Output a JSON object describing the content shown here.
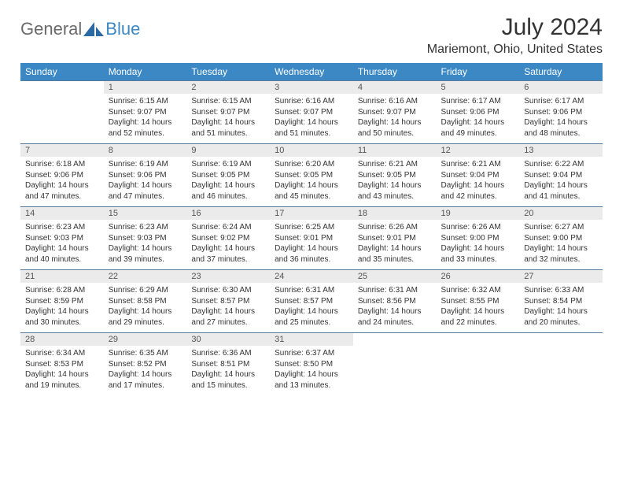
{
  "header": {
    "logo_general": "General",
    "logo_blue": "Blue",
    "month_title": "July 2024",
    "location": "Mariemont, Ohio, United States"
  },
  "colors": {
    "header_bg": "#3b88c4",
    "daynum_bg": "#ebebeb",
    "border": "#5a7a9a"
  },
  "day_names": [
    "Sunday",
    "Monday",
    "Tuesday",
    "Wednesday",
    "Thursday",
    "Friday",
    "Saturday"
  ],
  "weeks": [
    [
      {
        "n": "",
        "sr": "",
        "ss": "",
        "dl": ""
      },
      {
        "n": "1",
        "sr": "Sunrise: 6:15 AM",
        "ss": "Sunset: 9:07 PM",
        "dl": "Daylight: 14 hours and 52 minutes."
      },
      {
        "n": "2",
        "sr": "Sunrise: 6:15 AM",
        "ss": "Sunset: 9:07 PM",
        "dl": "Daylight: 14 hours and 51 minutes."
      },
      {
        "n": "3",
        "sr": "Sunrise: 6:16 AM",
        "ss": "Sunset: 9:07 PM",
        "dl": "Daylight: 14 hours and 51 minutes."
      },
      {
        "n": "4",
        "sr": "Sunrise: 6:16 AM",
        "ss": "Sunset: 9:07 PM",
        "dl": "Daylight: 14 hours and 50 minutes."
      },
      {
        "n": "5",
        "sr": "Sunrise: 6:17 AM",
        "ss": "Sunset: 9:06 PM",
        "dl": "Daylight: 14 hours and 49 minutes."
      },
      {
        "n": "6",
        "sr": "Sunrise: 6:17 AM",
        "ss": "Sunset: 9:06 PM",
        "dl": "Daylight: 14 hours and 48 minutes."
      }
    ],
    [
      {
        "n": "7",
        "sr": "Sunrise: 6:18 AM",
        "ss": "Sunset: 9:06 PM",
        "dl": "Daylight: 14 hours and 47 minutes."
      },
      {
        "n": "8",
        "sr": "Sunrise: 6:19 AM",
        "ss": "Sunset: 9:06 PM",
        "dl": "Daylight: 14 hours and 47 minutes."
      },
      {
        "n": "9",
        "sr": "Sunrise: 6:19 AM",
        "ss": "Sunset: 9:05 PM",
        "dl": "Daylight: 14 hours and 46 minutes."
      },
      {
        "n": "10",
        "sr": "Sunrise: 6:20 AM",
        "ss": "Sunset: 9:05 PM",
        "dl": "Daylight: 14 hours and 45 minutes."
      },
      {
        "n": "11",
        "sr": "Sunrise: 6:21 AM",
        "ss": "Sunset: 9:05 PM",
        "dl": "Daylight: 14 hours and 43 minutes."
      },
      {
        "n": "12",
        "sr": "Sunrise: 6:21 AM",
        "ss": "Sunset: 9:04 PM",
        "dl": "Daylight: 14 hours and 42 minutes."
      },
      {
        "n": "13",
        "sr": "Sunrise: 6:22 AM",
        "ss": "Sunset: 9:04 PM",
        "dl": "Daylight: 14 hours and 41 minutes."
      }
    ],
    [
      {
        "n": "14",
        "sr": "Sunrise: 6:23 AM",
        "ss": "Sunset: 9:03 PM",
        "dl": "Daylight: 14 hours and 40 minutes."
      },
      {
        "n": "15",
        "sr": "Sunrise: 6:23 AM",
        "ss": "Sunset: 9:03 PM",
        "dl": "Daylight: 14 hours and 39 minutes."
      },
      {
        "n": "16",
        "sr": "Sunrise: 6:24 AM",
        "ss": "Sunset: 9:02 PM",
        "dl": "Daylight: 14 hours and 37 minutes."
      },
      {
        "n": "17",
        "sr": "Sunrise: 6:25 AM",
        "ss": "Sunset: 9:01 PM",
        "dl": "Daylight: 14 hours and 36 minutes."
      },
      {
        "n": "18",
        "sr": "Sunrise: 6:26 AM",
        "ss": "Sunset: 9:01 PM",
        "dl": "Daylight: 14 hours and 35 minutes."
      },
      {
        "n": "19",
        "sr": "Sunrise: 6:26 AM",
        "ss": "Sunset: 9:00 PM",
        "dl": "Daylight: 14 hours and 33 minutes."
      },
      {
        "n": "20",
        "sr": "Sunrise: 6:27 AM",
        "ss": "Sunset: 9:00 PM",
        "dl": "Daylight: 14 hours and 32 minutes."
      }
    ],
    [
      {
        "n": "21",
        "sr": "Sunrise: 6:28 AM",
        "ss": "Sunset: 8:59 PM",
        "dl": "Daylight: 14 hours and 30 minutes."
      },
      {
        "n": "22",
        "sr": "Sunrise: 6:29 AM",
        "ss": "Sunset: 8:58 PM",
        "dl": "Daylight: 14 hours and 29 minutes."
      },
      {
        "n": "23",
        "sr": "Sunrise: 6:30 AM",
        "ss": "Sunset: 8:57 PM",
        "dl": "Daylight: 14 hours and 27 minutes."
      },
      {
        "n": "24",
        "sr": "Sunrise: 6:31 AM",
        "ss": "Sunset: 8:57 PM",
        "dl": "Daylight: 14 hours and 25 minutes."
      },
      {
        "n": "25",
        "sr": "Sunrise: 6:31 AM",
        "ss": "Sunset: 8:56 PM",
        "dl": "Daylight: 14 hours and 24 minutes."
      },
      {
        "n": "26",
        "sr": "Sunrise: 6:32 AM",
        "ss": "Sunset: 8:55 PM",
        "dl": "Daylight: 14 hours and 22 minutes."
      },
      {
        "n": "27",
        "sr": "Sunrise: 6:33 AM",
        "ss": "Sunset: 8:54 PM",
        "dl": "Daylight: 14 hours and 20 minutes."
      }
    ],
    [
      {
        "n": "28",
        "sr": "Sunrise: 6:34 AM",
        "ss": "Sunset: 8:53 PM",
        "dl": "Daylight: 14 hours and 19 minutes."
      },
      {
        "n": "29",
        "sr": "Sunrise: 6:35 AM",
        "ss": "Sunset: 8:52 PM",
        "dl": "Daylight: 14 hours and 17 minutes."
      },
      {
        "n": "30",
        "sr": "Sunrise: 6:36 AM",
        "ss": "Sunset: 8:51 PM",
        "dl": "Daylight: 14 hours and 15 minutes."
      },
      {
        "n": "31",
        "sr": "Sunrise: 6:37 AM",
        "ss": "Sunset: 8:50 PM",
        "dl": "Daylight: 14 hours and 13 minutes."
      },
      {
        "n": "",
        "sr": "",
        "ss": "",
        "dl": ""
      },
      {
        "n": "",
        "sr": "",
        "ss": "",
        "dl": ""
      },
      {
        "n": "",
        "sr": "",
        "ss": "",
        "dl": ""
      }
    ]
  ]
}
